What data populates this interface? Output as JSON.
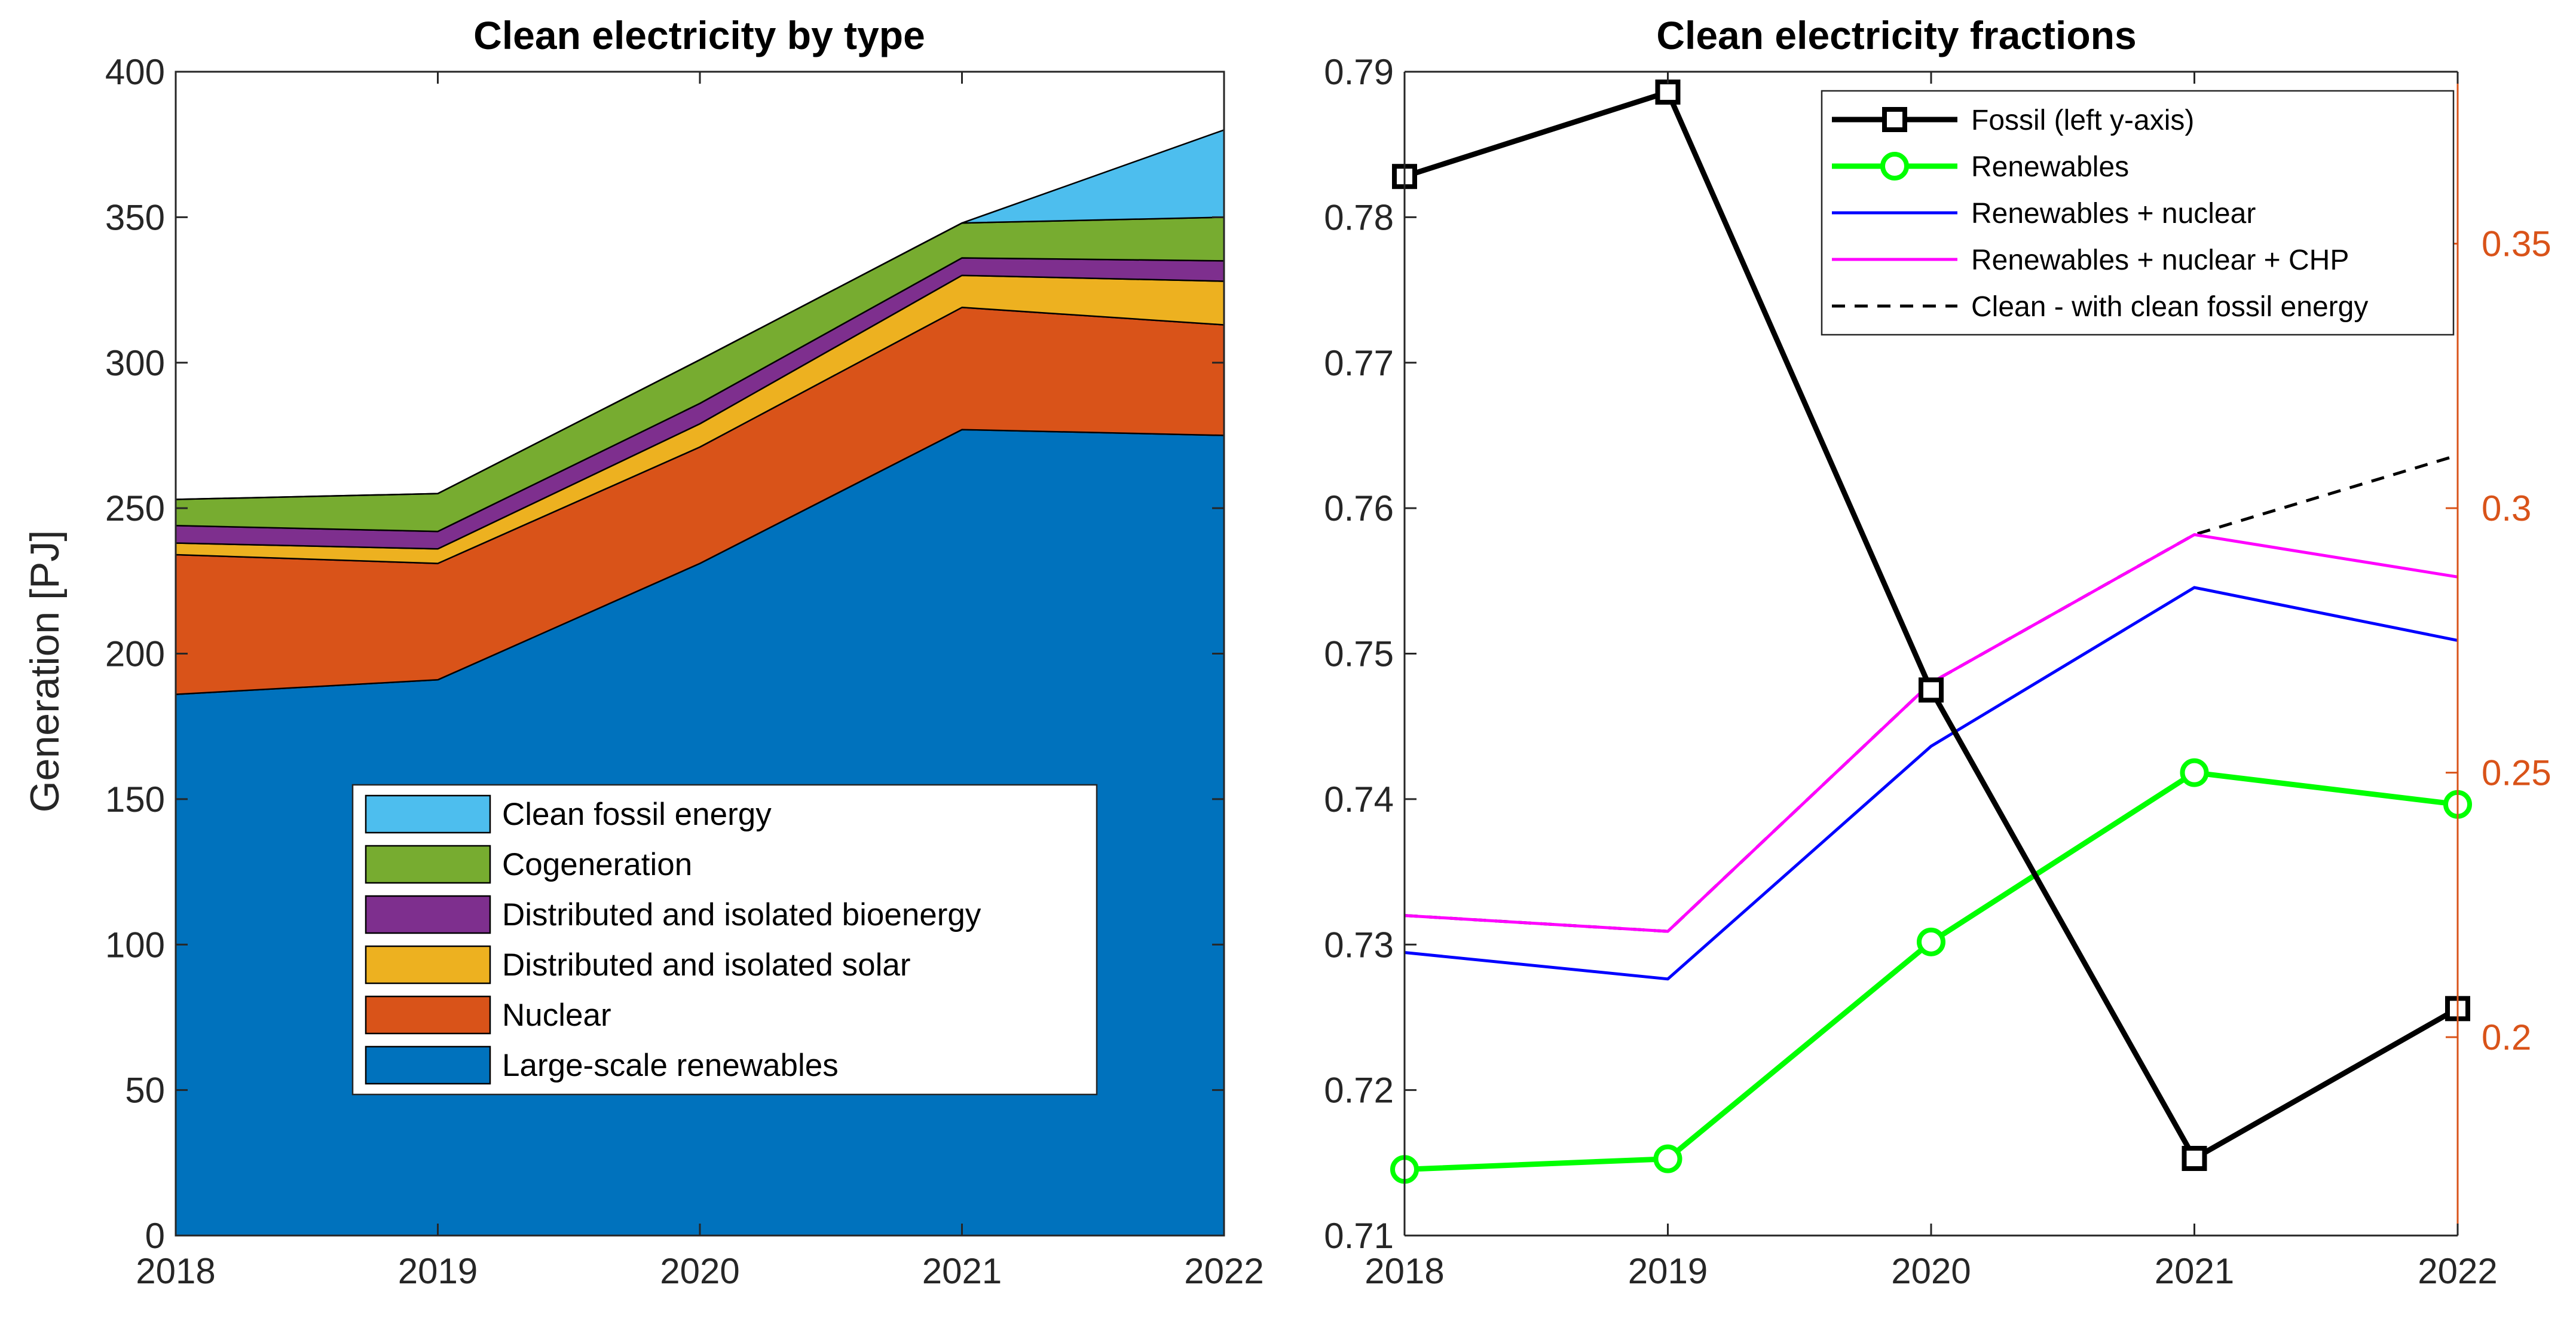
{
  "chart_data": [
    {
      "type": "area",
      "title": "Clean electricity by type",
      "xlabel": "",
      "ylabel": "Generation [PJ]",
      "xlim": [
        2018,
        2022
      ],
      "ylim": [
        0,
        400
      ],
      "x": [
        2018,
        2019,
        2020,
        2021,
        2022
      ],
      "xticks": [
        "2018",
        "2019",
        "2020",
        "2021",
        "2022"
      ],
      "yticks": [
        "0",
        "50",
        "100",
        "150",
        "200",
        "250",
        "300",
        "350",
        "400"
      ],
      "stacked": true,
      "legend_position": "bottom-center",
      "series": [
        {
          "name": "Large-scale renewables",
          "color": "#0072BD",
          "values": [
            186,
            191,
            231,
            277,
            275
          ]
        },
        {
          "name": "Nuclear",
          "color": "#D95319",
          "values": [
            48,
            40,
            40,
            42,
            38
          ]
        },
        {
          "name": "Distributed and isolated solar",
          "color": "#EDB120",
          "values": [
            4,
            5,
            8,
            11,
            15
          ]
        },
        {
          "name": "Distributed and isolated bioenergy",
          "color": "#7E2F8E",
          "values": [
            6,
            6,
            7,
            6,
            7
          ]
        },
        {
          "name": "Cogeneration",
          "color": "#77AC30",
          "values": [
            9,
            13,
            15,
            12,
            15
          ]
        },
        {
          "name": "Clean fossil energy",
          "color": "#4DBEEE",
          "values": [
            0,
            0,
            0,
            0,
            30
          ]
        }
      ]
    },
    {
      "type": "line",
      "title": "Clean electricity fractions",
      "xlabel": "",
      "ylabel": "",
      "xlim": [
        2018,
        2022
      ],
      "x": [
        2018,
        2019,
        2020,
        2021,
        2022
      ],
      "xticks": [
        "2018",
        "2019",
        "2020",
        "2021",
        "2022"
      ],
      "ylim_left": [
        0.71,
        0.79
      ],
      "yticks_left": [
        "0.71",
        "0.72",
        "0.73",
        "0.74",
        "0.75",
        "0.76",
        "0.77",
        "0.78",
        "0.79"
      ],
      "ylim_right": [
        0.1625,
        0.3825
      ],
      "yticks_right": [
        "0.2",
        "0.25",
        "0.3",
        "0.35"
      ],
      "right_axis_color": "#D95319",
      "legend_position": "top-right",
      "series": [
        {
          "name": "Fossil (left y-axis)",
          "axis": "left",
          "color": "#000000",
          "style": "solid",
          "marker": "square",
          "values": [
            0.7828,
            0.7886,
            0.7475,
            0.7153,
            0.7256
          ]
        },
        {
          "name": "Renewables",
          "axis": "right",
          "color": "#00FF00",
          "style": "solid",
          "marker": "circle",
          "values": [
            0.175,
            0.177,
            0.218,
            0.25,
            0.244
          ]
        },
        {
          "name": "Renewables + nuclear",
          "axis": "right",
          "color": "#0000FF",
          "style": "solid",
          "marker": "none",
          "values": [
            0.216,
            0.211,
            0.255,
            0.285,
            0.275
          ]
        },
        {
          "name": "Renewables + nuclear + CHP",
          "axis": "right",
          "color": "#FF00FF",
          "style": "solid",
          "marker": "none",
          "values": [
            0.223,
            0.22,
            0.267,
            0.295,
            0.287
          ]
        },
        {
          "name": "Clean - with clean fossil energy",
          "axis": "right",
          "color": "#000000",
          "style": "dashed",
          "marker": "none",
          "values": [
            0.223,
            0.22,
            0.267,
            0.295,
            0.31
          ]
        }
      ]
    }
  ]
}
